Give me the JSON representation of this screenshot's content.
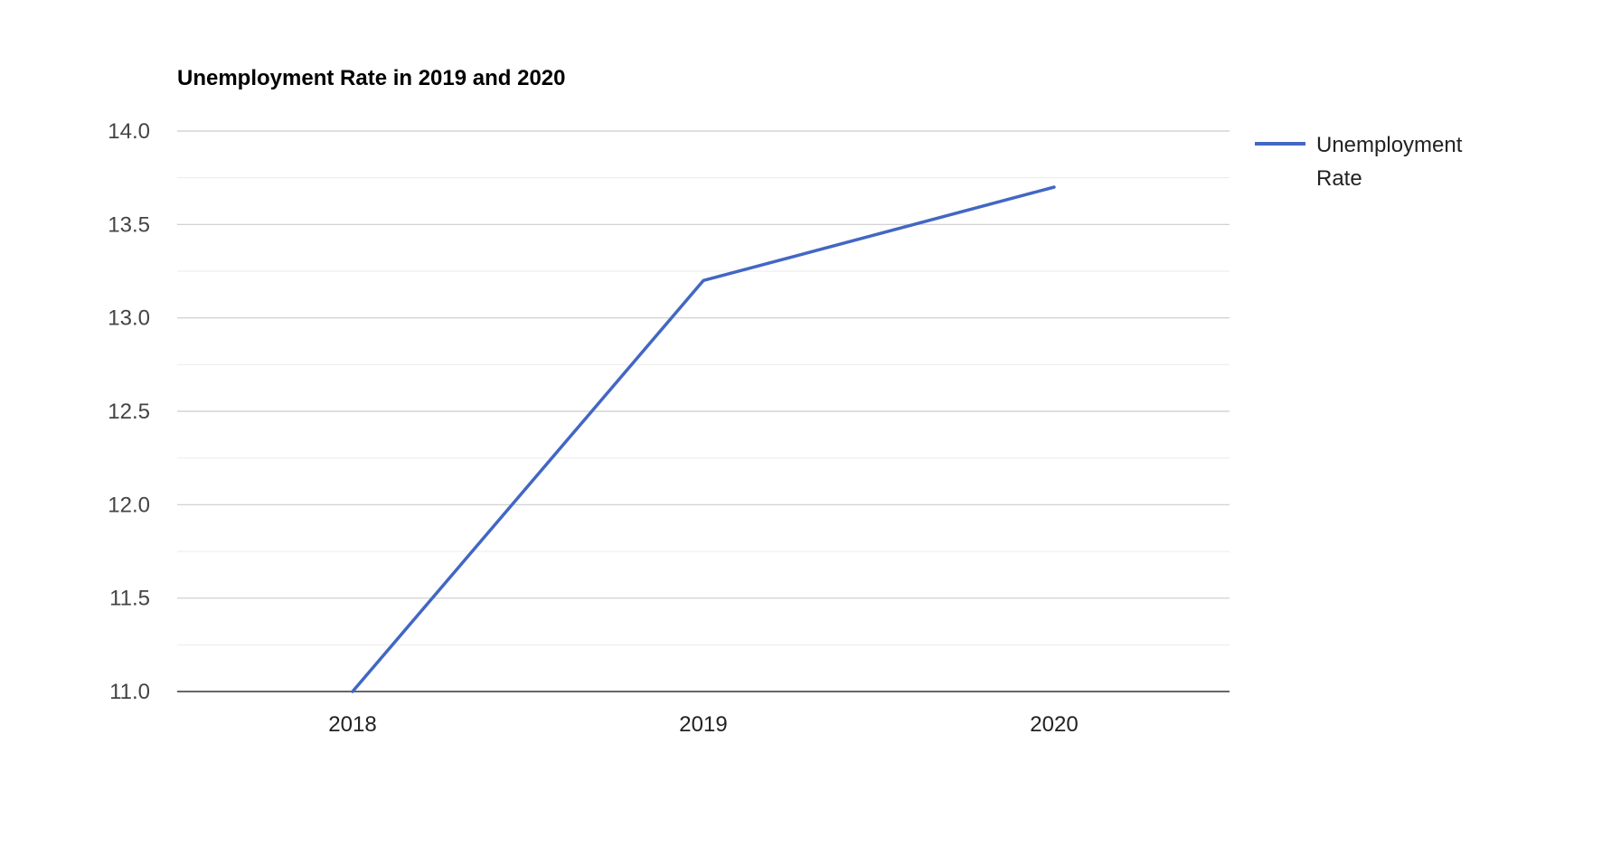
{
  "chart_data": {
    "type": "line",
    "title": "Unemployment Rate in 2019 and 2020",
    "xlabel": "",
    "ylabel": "",
    "categories": [
      "2018",
      "2019",
      "2020"
    ],
    "series": [
      {
        "name": "Unemployment Rate",
        "values": [
          11.0,
          13.2,
          13.7
        ],
        "color": "#4267c3"
      }
    ],
    "ylim": [
      11.0,
      14.0
    ],
    "y_ticks": [
      "11.0",
      "11.5",
      "12.0",
      "12.5",
      "13.0",
      "13.5",
      "14.0"
    ],
    "legend_lines": [
      "Unemployment",
      "Rate"
    ],
    "grid": true,
    "legend_position": "right"
  }
}
